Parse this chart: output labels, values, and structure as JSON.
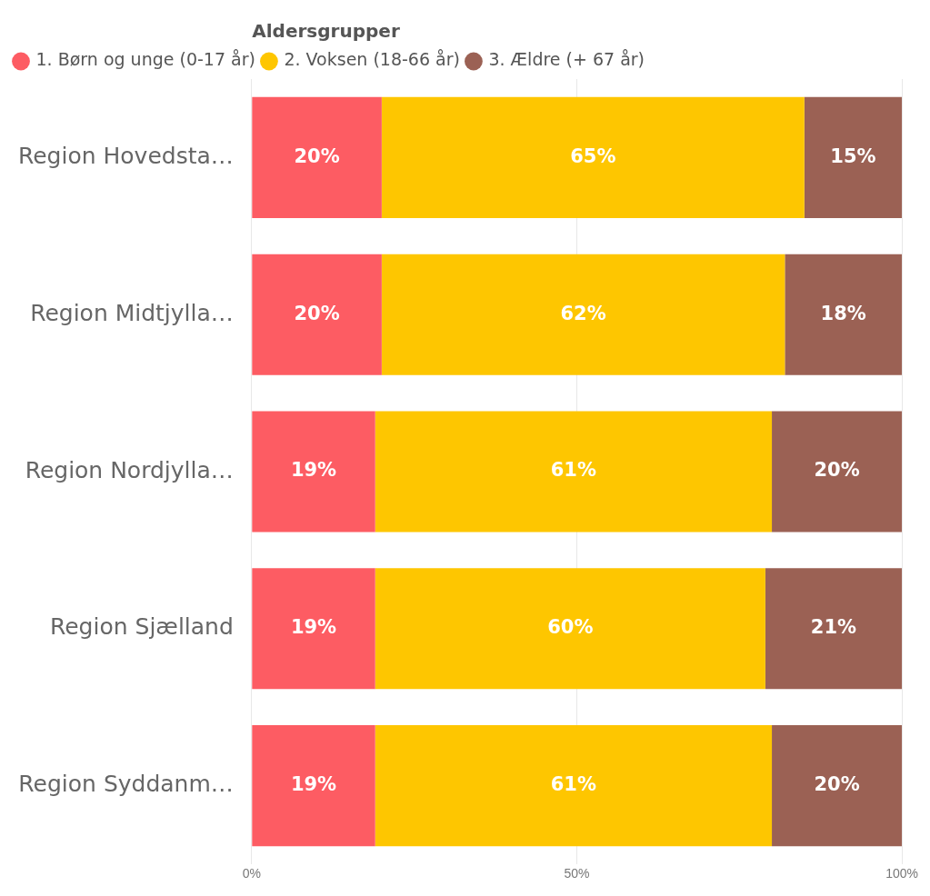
{
  "chart_data": {
    "type": "bar",
    "orientation": "horizontal",
    "stacked": true,
    "legend_title": "Aldersgrupper",
    "legend": "top left",
    "grid": "x",
    "categories": [
      "Region Hovedsta…",
      "Region Midtjylla…",
      "Region Nordjylla…",
      "Region Sjælland",
      "Region Syddanm…"
    ],
    "xlim": [
      0,
      100
    ],
    "xticks": [
      {
        "value": 0,
        "label": "0%"
      },
      {
        "value": 50,
        "label": "50%"
      },
      {
        "value": 100,
        "label": "100%"
      }
    ],
    "series": [
      {
        "name": "1. Børn og unge (0-17 år)",
        "color": "#fd5c63",
        "values": [
          20,
          20,
          19,
          19,
          19
        ],
        "value_labels": [
          "20%",
          "20%",
          "19%",
          "19%",
          "19%"
        ]
      },
      {
        "name": "2. Voksen (18-66 år)",
        "color": "#fec600",
        "values": [
          65,
          62,
          61,
          60,
          61
        ],
        "value_labels": [
          "65%",
          "62%",
          "61%",
          "60%",
          "61%"
        ]
      },
      {
        "name": "3. Ældre (+ 67 år)",
        "color": "#9b6154",
        "values": [
          15,
          18,
          20,
          21,
          20
        ],
        "value_labels": [
          "15%",
          "18%",
          "20%",
          "21%",
          "20%"
        ]
      }
    ]
  }
}
